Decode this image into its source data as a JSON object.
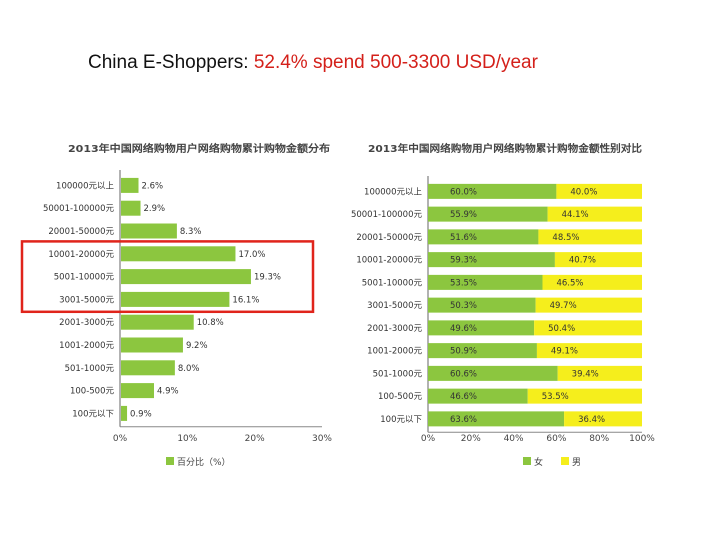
{
  "slide": {
    "title_prefix": "China E-Shoppers: ",
    "title_highlight": "52.4% spend 500-3300 USD/year"
  },
  "chart_data": [
    {
      "type": "bar",
      "orientation": "horizontal",
      "title": "2013年中国网络购物用户网络购物累计购物金额分布",
      "categories": [
        "100000元以上",
        "50001-100000元",
        "20001-50000元",
        "10001-20000元",
        "5001-10000元",
        "3001-5000元",
        "2001-3000元",
        "1001-2000元",
        "501-1000元",
        "100-500元",
        "100元以下"
      ],
      "series": [
        {
          "name": "百分比（%）",
          "values": [
            2.6,
            2.9,
            8.3,
            17.0,
            19.3,
            16.1,
            10.8,
            9.2,
            8.0,
            4.9,
            0.9
          ]
        }
      ],
      "data_labels": [
        "2.6%",
        "2.9%",
        "8.3%",
        "17.0%",
        "19.3%",
        "16.1%",
        "10.8%",
        "9.2%",
        "8.0%",
        "4.9%",
        "0.9%"
      ],
      "xlim": [
        0,
        30
      ],
      "x_ticks": [
        "0%",
        "10%",
        "20%",
        "30%"
      ],
      "legend": "bottom",
      "highlight_box_categories": [
        "10001-20000元",
        "5001-10000元",
        "3001-5000元"
      ],
      "colors": {
        "bar": "#8cc63f",
        "highlight": "#e0241b"
      }
    },
    {
      "type": "bar",
      "orientation": "horizontal",
      "stacked": true,
      "title": "2013年中国网络购物用户网络购物累计购物金额性别对比",
      "categories": [
        "100000元以上",
        "50001-100000元",
        "20001-50000元",
        "10001-20000元",
        "5001-10000元",
        "3001-5000元",
        "2001-3000元",
        "1001-2000元",
        "501-1000元",
        "100-500元",
        "100元以下"
      ],
      "series": [
        {
          "name": "女",
          "values": [
            60.0,
            55.9,
            51.6,
            59.3,
            53.5,
            50.3,
            49.6,
            50.9,
            60.6,
            46.6,
            63.6
          ],
          "labels": [
            "60.0%",
            "55.9%",
            "51.6%",
            "59.3%",
            "53.5%",
            "50.3%",
            "49.6%",
            "50.9%",
            "60.6%",
            "46.6%",
            "63.6%"
          ]
        },
        {
          "name": "男",
          "values": [
            40.0,
            44.1,
            48.5,
            40.7,
            46.5,
            49.7,
            50.4,
            49.1,
            39.4,
            53.5,
            36.4
          ],
          "labels": [
            "40.0%",
            "44.1%",
            "48.5%",
            "40.7%",
            "46.5%",
            "49.7%",
            "50.4%",
            "49.1%",
            "39.4%",
            "53.5%",
            "36.4%"
          ]
        }
      ],
      "xlim": [
        0,
        100
      ],
      "x_ticks": [
        "0%",
        "20%",
        "40%",
        "60%",
        "80%",
        "100%"
      ],
      "legend": "bottom",
      "colors": {
        "female": "#8cc63f",
        "male": "#f5ee1c"
      }
    }
  ]
}
